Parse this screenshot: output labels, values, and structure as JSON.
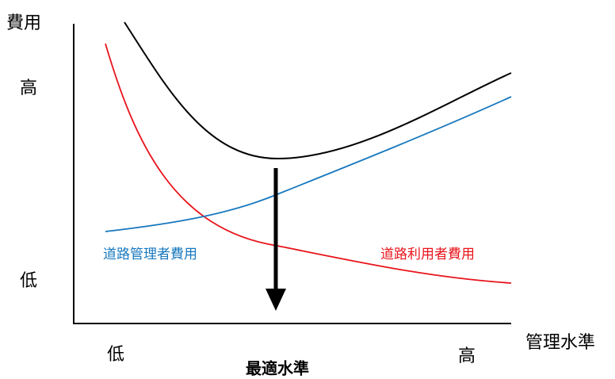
{
  "y_axis": {
    "label": "費用",
    "high": "高",
    "low": "低"
  },
  "x_axis": {
    "label": "管理水準",
    "low": "低",
    "high": "高"
  },
  "optimum_label": "最適水準",
  "curves": [
    {
      "label": "道路管理者費用"
    },
    {
      "label": "道路利用者費用"
    }
  ]
}
